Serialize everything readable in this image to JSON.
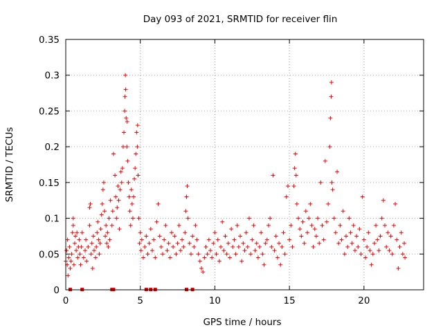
{
  "chart_data": {
    "type": "scatter",
    "title": "Day 093 of 2021, SRMTID for receiver flin",
    "xlabel": "GPS time / hours",
    "ylabel": "SRMTID / TECUs",
    "xlim": [
      0,
      24
    ],
    "ylim": [
      0,
      0.35
    ],
    "x_ticks": [
      0,
      5,
      10,
      15,
      20
    ],
    "y_ticks": [
      0,
      0.05,
      0.1,
      0.15,
      0.2,
      0.25,
      0.3,
      0.35
    ],
    "x_tick_labels": [
      "0",
      "5",
      "10",
      "15",
      "20"
    ],
    "y_tick_labels": [
      "0",
      "0.05",
      "0.1",
      "0.15",
      "0.2",
      "0.25",
      "0.3",
      "0.35"
    ],
    "grid": true,
    "marker": "plus",
    "color": "#ee0000",
    "series": [
      {
        "points": [
          [
            0.0,
            0.04
          ],
          [
            0.05,
            0.055
          ],
          [
            0.1,
            0.035
          ],
          [
            0.12,
            0.07
          ],
          [
            0.15,
            0.02
          ],
          [
            0.2,
            0.045
          ],
          [
            0.25,
            0.06
          ],
          [
            0.3,
            0.03
          ],
          [
            0.35,
            0.04
          ],
          [
            0.4,
            0.05
          ],
          [
            0.45,
            0.08
          ],
          [
            0.5,
            0.09
          ],
          [
            0.5,
            0.1
          ],
          [
            0.55,
            0.035
          ],
          [
            0.6,
            0.065
          ],
          [
            0.65,
            0.075
          ],
          [
            0.7,
            0.055
          ],
          [
            0.75,
            0.08
          ],
          [
            0.8,
            0.045
          ],
          [
            0.85,
            0.06
          ],
          [
            0.9,
            0.07
          ],
          [
            0.95,
            0.05
          ],
          [
            1.0,
            0.035
          ],
          [
            1.05,
            0.06
          ],
          [
            1.1,
            0.08
          ],
          [
            1.2,
            0.045
          ],
          [
            1.3,
            0.055
          ],
          [
            1.35,
            0.07
          ],
          [
            1.4,
            0.04
          ],
          [
            1.5,
            0.06
          ],
          [
            1.6,
            0.09
          ],
          [
            1.6,
            0.115
          ],
          [
            1.65,
            0.12
          ],
          [
            1.7,
            0.05
          ],
          [
            1.75,
            0.065
          ],
          [
            1.8,
            0.03
          ],
          [
            1.85,
            0.075
          ],
          [
            1.9,
            0.055
          ],
          [
            2.0,
            0.045
          ],
          [
            2.05,
            0.06
          ],
          [
            2.1,
            0.08
          ],
          [
            2.15,
            0.095
          ],
          [
            2.2,
            0.07
          ],
          [
            2.25,
            0.05
          ],
          [
            2.3,
            0.065
          ],
          [
            2.35,
            0.085
          ],
          [
            2.4,
            0.105
          ],
          [
            2.45,
            0.12
          ],
          [
            2.5,
            0.14
          ],
          [
            2.55,
            0.15
          ],
          [
            2.6,
            0.11
          ],
          [
            2.65,
            0.075
          ],
          [
            2.7,
            0.09
          ],
          [
            2.75,
            0.065
          ],
          [
            2.8,
            0.08
          ],
          [
            2.85,
            0.06
          ],
          [
            2.9,
            0.1
          ],
          [
            2.95,
            0.07
          ],
          [
            3.0,
            0.125
          ],
          [
            3.1,
            0.09
          ],
          [
            3.15,
            0.11
          ],
          [
            3.2,
            0.19
          ],
          [
            3.3,
            0.16
          ],
          [
            3.35,
            0.13
          ],
          [
            3.4,
            0.1
          ],
          [
            3.45,
            0.115
          ],
          [
            3.5,
            0.145
          ],
          [
            3.55,
            0.125
          ],
          [
            3.6,
            0.085
          ],
          [
            3.65,
            0.14
          ],
          [
            3.7,
            0.165
          ],
          [
            3.75,
            0.15
          ],
          [
            3.8,
            0.17
          ],
          [
            3.85,
            0.2
          ],
          [
            3.9,
            0.22
          ],
          [
            3.95,
            0.25
          ],
          [
            3.97,
            0.27
          ],
          [
            4.0,
            0.3
          ],
          [
            4.02,
            0.28
          ],
          [
            4.05,
            0.24
          ],
          [
            4.1,
            0.2
          ],
          [
            4.12,
            0.235
          ],
          [
            4.15,
            0.18
          ],
          [
            4.2,
            0.15
          ],
          [
            4.25,
            0.13
          ],
          [
            4.3,
            0.11
          ],
          [
            4.35,
            0.09
          ],
          [
            4.4,
            0.14
          ],
          [
            4.45,
            0.12
          ],
          [
            4.5,
            0.1
          ],
          [
            4.55,
            0.13
          ],
          [
            4.6,
            0.155
          ],
          [
            4.65,
            0.17
          ],
          [
            4.7,
            0.19
          ],
          [
            4.75,
            0.22
          ],
          [
            4.8,
            0.2
          ],
          [
            4.82,
            0.23
          ],
          [
            4.85,
            0.16
          ],
          [
            4.9,
            0.1
          ],
          [
            4.95,
            0.065
          ],
          [
            5.0,
            0.08
          ],
          [
            5.05,
            0.055
          ],
          [
            5.1,
            0.07
          ],
          [
            5.2,
            0.045
          ],
          [
            5.3,
            0.06
          ],
          [
            5.4,
            0.075
          ],
          [
            5.5,
            0.05
          ],
          [
            5.6,
            0.065
          ],
          [
            5.7,
            0.085
          ],
          [
            5.8,
            0.055
          ],
          [
            5.9,
            0.07
          ],
          [
            6.0,
            0.045
          ],
          [
            6.1,
            0.095
          ],
          [
            6.2,
            0.12
          ],
          [
            6.3,
            0.075
          ],
          [
            6.4,
            0.06
          ],
          [
            6.5,
            0.05
          ],
          [
            6.6,
            0.07
          ],
          [
            6.7,
            0.09
          ],
          [
            6.8,
            0.055
          ],
          [
            6.9,
            0.065
          ],
          [
            7.0,
            0.045
          ],
          [
            7.1,
            0.08
          ],
          [
            7.2,
            0.06
          ],
          [
            7.3,
            0.075
          ],
          [
            7.4,
            0.05
          ],
          [
            7.5,
            0.065
          ],
          [
            7.6,
            0.09
          ],
          [
            7.7,
            0.055
          ],
          [
            7.8,
            0.07
          ],
          [
            7.9,
            0.06
          ],
          [
            8.0,
            0.08
          ],
          [
            8.05,
            0.11
          ],
          [
            8.1,
            0.13
          ],
          [
            8.15,
            0.145
          ],
          [
            8.2,
            0.1
          ],
          [
            8.3,
            0.065
          ],
          [
            8.4,
            0.05
          ],
          [
            8.5,
            0.075
          ],
          [
            8.6,
            0.06
          ],
          [
            8.7,
            0.09
          ],
          [
            8.8,
            0.07
          ],
          [
            8.9,
            0.05
          ],
          [
            9.0,
            0.04
          ],
          [
            9.1,
            0.03
          ],
          [
            9.2,
            0.025
          ],
          [
            9.3,
            0.045
          ],
          [
            9.4,
            0.06
          ],
          [
            9.5,
            0.05
          ],
          [
            9.6,
            0.07
          ],
          [
            9.7,
            0.055
          ],
          [
            9.8,
            0.045
          ],
          [
            9.9,
            0.065
          ],
          [
            10.0,
            0.08
          ],
          [
            10.1,
            0.05
          ],
          [
            10.2,
            0.07
          ],
          [
            10.3,
            0.04
          ],
          [
            10.4,
            0.06
          ],
          [
            10.5,
            0.095
          ],
          [
            10.6,
            0.055
          ],
          [
            10.7,
            0.075
          ],
          [
            10.8,
            0.05
          ],
          [
            10.9,
            0.065
          ],
          [
            11.0,
            0.045
          ],
          [
            11.1,
            0.085
          ],
          [
            11.2,
            0.06
          ],
          [
            11.3,
            0.07
          ],
          [
            11.4,
            0.05
          ],
          [
            11.5,
            0.09
          ],
          [
            11.6,
            0.06
          ],
          [
            11.7,
            0.075
          ],
          [
            11.8,
            0.04
          ],
          [
            11.9,
            0.065
          ],
          [
            12.0,
            0.055
          ],
          [
            12.1,
            0.08
          ],
          [
            12.2,
            0.06
          ],
          [
            12.3,
            0.1
          ],
          [
            12.4,
            0.05
          ],
          [
            12.5,
            0.07
          ],
          [
            12.6,
            0.09
          ],
          [
            12.7,
            0.055
          ],
          [
            12.8,
            0.065
          ],
          [
            12.9,
            0.045
          ],
          [
            13.0,
            0.06
          ],
          [
            13.1,
            0.08
          ],
          [
            13.2,
            0.05
          ],
          [
            13.3,
            0.035
          ],
          [
            13.4,
            0.065
          ],
          [
            13.5,
            0.07
          ],
          [
            13.6,
            0.09
          ],
          [
            13.7,
            0.1
          ],
          [
            13.8,
            0.06
          ],
          [
            13.9,
            0.16
          ],
          [
            14.0,
            0.055
          ],
          [
            14.1,
            0.075
          ],
          [
            14.2,
            0.045
          ],
          [
            14.3,
            0.065
          ],
          [
            14.4,
            0.035
          ],
          [
            14.5,
            0.06
          ],
          [
            14.6,
            0.08
          ],
          [
            14.7,
            0.05
          ],
          [
            14.8,
            0.13
          ],
          [
            14.9,
            0.145
          ],
          [
            15.0,
            0.07
          ],
          [
            15.1,
            0.09
          ],
          [
            15.2,
            0.06
          ],
          [
            15.3,
            0.145
          ],
          [
            15.35,
            0.17
          ],
          [
            15.4,
            0.19
          ],
          [
            15.45,
            0.16
          ],
          [
            15.5,
            0.12
          ],
          [
            15.6,
            0.1
          ],
          [
            15.7,
            0.085
          ],
          [
            15.8,
            0.075
          ],
          [
            15.9,
            0.095
          ],
          [
            16.0,
            0.065
          ],
          [
            16.1,
            0.11
          ],
          [
            16.2,
            0.08
          ],
          [
            16.3,
            0.1
          ],
          [
            16.4,
            0.12
          ],
          [
            16.5,
            0.09
          ],
          [
            16.6,
            0.06
          ],
          [
            16.7,
            0.085
          ],
          [
            16.8,
            0.075
          ],
          [
            16.9,
            0.1
          ],
          [
            17.0,
            0.065
          ],
          [
            17.1,
            0.15
          ],
          [
            17.2,
            0.09
          ],
          [
            17.3,
            0.07
          ],
          [
            17.4,
            0.18
          ],
          [
            17.5,
            0.095
          ],
          [
            17.6,
            0.12
          ],
          [
            17.7,
            0.2
          ],
          [
            17.75,
            0.24
          ],
          [
            17.8,
            0.27
          ],
          [
            17.82,
            0.29
          ],
          [
            17.85,
            0.15
          ],
          [
            17.9,
            0.14
          ],
          [
            18.0,
            0.1
          ],
          [
            18.1,
            0.08
          ],
          [
            18.2,
            0.165
          ],
          [
            18.3,
            0.065
          ],
          [
            18.4,
            0.09
          ],
          [
            18.5,
            0.07
          ],
          [
            18.6,
            0.11
          ],
          [
            18.7,
            0.05
          ],
          [
            18.8,
            0.075
          ],
          [
            18.9,
            0.06
          ],
          [
            19.0,
            0.1
          ],
          [
            19.1,
            0.08
          ],
          [
            19.2,
            0.065
          ],
          [
            19.3,
            0.09
          ],
          [
            19.4,
            0.055
          ],
          [
            19.5,
            0.075
          ],
          [
            19.6,
            0.06
          ],
          [
            19.7,
            0.085
          ],
          [
            19.8,
            0.05
          ],
          [
            19.9,
            0.13
          ],
          [
            20.0,
            0.07
          ],
          [
            20.1,
            0.045
          ],
          [
            20.2,
            0.06
          ],
          [
            20.3,
            0.08
          ],
          [
            20.4,
            0.055
          ],
          [
            20.5,
            0.035
          ],
          [
            20.6,
            0.05
          ],
          [
            20.7,
            0.065
          ],
          [
            20.8,
            0.09
          ],
          [
            20.9,
            0.07
          ],
          [
            21.0,
            0.055
          ],
          [
            21.1,
            0.075
          ],
          [
            21.2,
            0.1
          ],
          [
            21.3,
            0.125
          ],
          [
            21.4,
            0.09
          ],
          [
            21.5,
            0.06
          ],
          [
            21.6,
            0.08
          ],
          [
            21.7,
            0.055
          ],
          [
            21.8,
            0.075
          ],
          [
            21.9,
            0.05
          ],
          [
            22.0,
            0.09
          ],
          [
            22.1,
            0.12
          ],
          [
            22.2,
            0.07
          ],
          [
            22.3,
            0.03
          ],
          [
            22.4,
            0.06
          ],
          [
            22.5,
            0.08
          ],
          [
            22.6,
            0.05
          ],
          [
            22.7,
            0.065
          ],
          [
            22.75,
            0.045
          ]
        ]
      }
    ],
    "zero_markers_x": [
      0.3,
      1.1,
      3.1,
      3.2,
      5.4,
      5.7,
      6.0,
      8.1,
      8.5
    ]
  }
}
